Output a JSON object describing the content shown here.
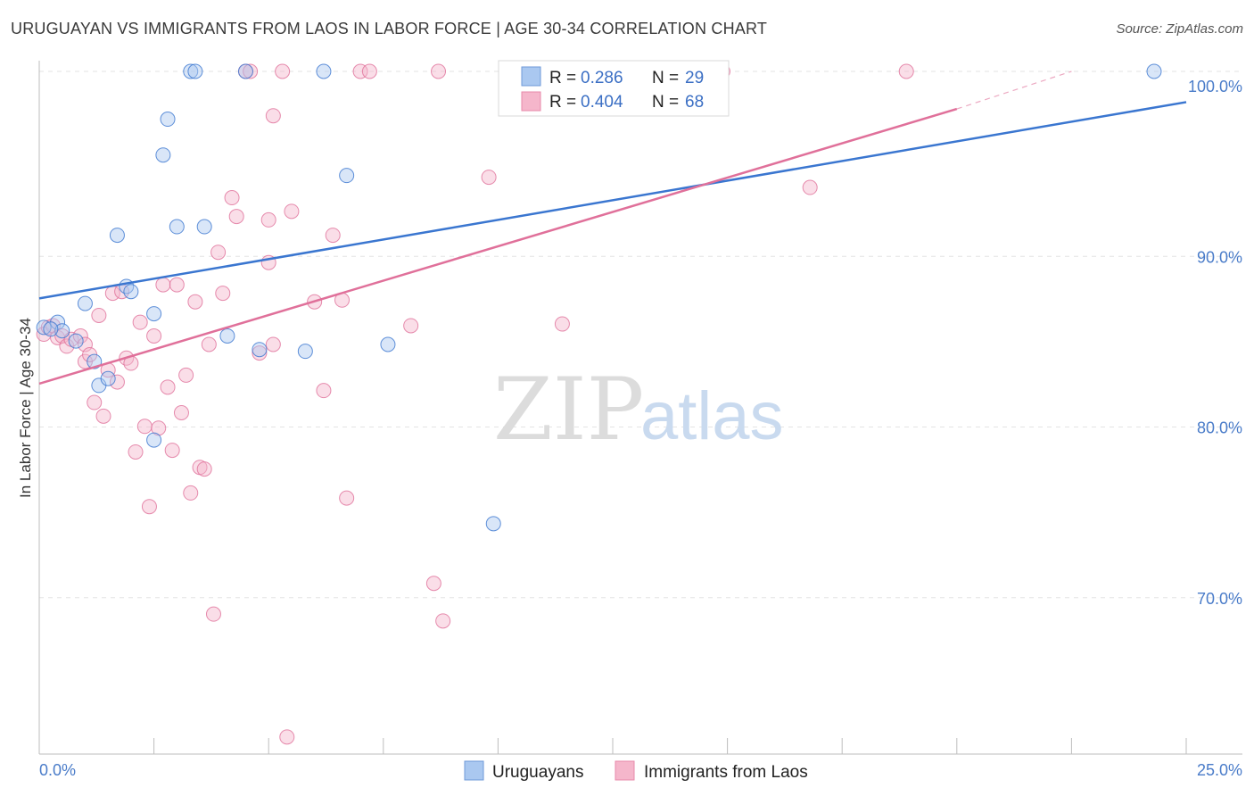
{
  "title": "URUGUAYAN VS IMMIGRANTS FROM LAOS IN LABOR FORCE | AGE 30-34 CORRELATION CHART",
  "source": "Source: ZipAtlas.com",
  "watermark": {
    "zip": "ZIP",
    "atlas": "atlas"
  },
  "colors": {
    "uruguayan": "#3a76d0",
    "laos": "#e0709a",
    "uruguayan_fill": "#aac8f0",
    "laos_fill": "#f5b6cb"
  },
  "legend": {
    "rows": [
      {
        "r_label": "R =",
        "r_value": "0.286",
        "n_label": "N =",
        "n_value": "29"
      },
      {
        "r_label": "R =",
        "r_value": "0.404",
        "n_label": "N =",
        "n_value": "68"
      }
    ]
  },
  "chart_data": {
    "type": "scatter",
    "title": "URUGUAYAN VS IMMIGRANTS FROM LAOS IN LABOR FORCE | AGE 30-34 CORRELATION CHART",
    "xlabel": "",
    "ylabel": "In Labor Force | Age 30-34",
    "xlim": [
      0,
      25
    ],
    "ylim": [
      60,
      100
    ],
    "x_tick_labels": [
      "0.0%",
      "25.0%"
    ],
    "y_ticks": [
      70,
      80,
      90,
      100
    ],
    "y_tick_labels": [
      "70.0%",
      "80.0%",
      "90.0%",
      "100.0%"
    ],
    "series": [
      {
        "name": "Uruguayans",
        "r": 0.286,
        "n": 29,
        "trend": {
          "x": [
            0,
            25
          ],
          "y": [
            86.7,
            98.2
          ]
        },
        "points": [
          [
            0.1,
            85.0
          ],
          [
            0.4,
            85.3
          ],
          [
            0.5,
            84.8
          ],
          [
            0.8,
            84.2
          ],
          [
            1.0,
            86.4
          ],
          [
            1.2,
            83.0
          ],
          [
            1.3,
            81.6
          ],
          [
            1.5,
            82.0
          ],
          [
            1.7,
            90.4
          ],
          [
            1.9,
            87.4
          ],
          [
            2.0,
            87.1
          ],
          [
            2.5,
            78.4
          ],
          [
            2.5,
            85.8
          ],
          [
            2.7,
            95.1
          ],
          [
            2.8,
            97.2
          ],
          [
            3.0,
            90.9
          ],
          [
            3.3,
            100.0
          ],
          [
            3.4,
            100.0
          ],
          [
            3.6,
            90.9
          ],
          [
            4.1,
            84.5
          ],
          [
            4.5,
            100.0
          ],
          [
            4.8,
            83.7
          ],
          [
            5.8,
            83.6
          ],
          [
            6.2,
            100.0
          ],
          [
            6.7,
            93.9
          ],
          [
            7.6,
            84.0
          ],
          [
            9.9,
            73.5
          ],
          [
            24.3,
            100.0
          ],
          [
            0.25,
            84.9
          ]
        ]
      },
      {
        "name": "Immigrants from Laos",
        "r": 0.404,
        "n": 68,
        "trend": {
          "x": [
            0,
            20
          ],
          "y": [
            81.7,
            97.8
          ]
        },
        "trend_dashed": {
          "x": [
            20,
            22.5
          ],
          "y": [
            97.8,
            100.0
          ]
        },
        "points": [
          [
            0.1,
            84.6
          ],
          [
            0.2,
            85.0
          ],
          [
            0.3,
            85.1
          ],
          [
            0.4,
            84.4
          ],
          [
            0.5,
            84.5
          ],
          [
            0.6,
            83.9
          ],
          [
            0.7,
            84.3
          ],
          [
            0.9,
            84.5
          ],
          [
            1.0,
            84.0
          ],
          [
            1.0,
            83.0
          ],
          [
            1.1,
            83.4
          ],
          [
            1.2,
            80.6
          ],
          [
            1.3,
            85.7
          ],
          [
            1.4,
            79.8
          ],
          [
            1.5,
            82.5
          ],
          [
            1.6,
            87.0
          ],
          [
            1.7,
            81.8
          ],
          [
            1.8,
            87.1
          ],
          [
            1.9,
            83.2
          ],
          [
            2.0,
            82.9
          ],
          [
            2.1,
            77.7
          ],
          [
            2.2,
            85.3
          ],
          [
            2.3,
            79.2
          ],
          [
            2.4,
            74.5
          ],
          [
            2.5,
            84.5
          ],
          [
            2.6,
            79.1
          ],
          [
            2.7,
            87.5
          ],
          [
            2.8,
            81.5
          ],
          [
            2.9,
            77.8
          ],
          [
            3.0,
            87.5
          ],
          [
            3.1,
            80.0
          ],
          [
            3.2,
            82.2
          ],
          [
            3.3,
            75.3
          ],
          [
            3.4,
            86.5
          ],
          [
            3.5,
            76.8
          ],
          [
            3.6,
            76.7
          ],
          [
            3.7,
            84.0
          ],
          [
            3.8,
            68.2
          ],
          [
            3.9,
            89.4
          ],
          [
            4.0,
            87.0
          ],
          [
            4.2,
            92.6
          ],
          [
            4.3,
            91.5
          ],
          [
            4.5,
            100.0
          ],
          [
            4.6,
            100.0
          ],
          [
            4.8,
            83.5
          ],
          [
            5.1,
            97.4
          ],
          [
            5.1,
            84.0
          ],
          [
            5.0,
            91.3
          ],
          [
            5.0,
            88.8
          ],
          [
            5.3,
            100.0
          ],
          [
            5.4,
            61.0
          ],
          [
            5.5,
            91.8
          ],
          [
            6.0,
            86.5
          ],
          [
            6.2,
            81.3
          ],
          [
            6.4,
            90.4
          ],
          [
            6.6,
            86.6
          ],
          [
            6.7,
            75.0
          ],
          [
            7.0,
            100.0
          ],
          [
            7.2,
            100.0
          ],
          [
            8.1,
            85.1
          ],
          [
            8.6,
            70.0
          ],
          [
            8.7,
            100.0
          ],
          [
            8.8,
            67.8
          ],
          [
            9.8,
            93.8
          ],
          [
            11.4,
            85.2
          ],
          [
            14.9,
            100.0
          ],
          [
            16.8,
            93.2
          ],
          [
            18.9,
            100.0
          ]
        ]
      }
    ]
  },
  "bottom_legend": [
    "Uruguayans",
    "Immigrants from Laos"
  ]
}
